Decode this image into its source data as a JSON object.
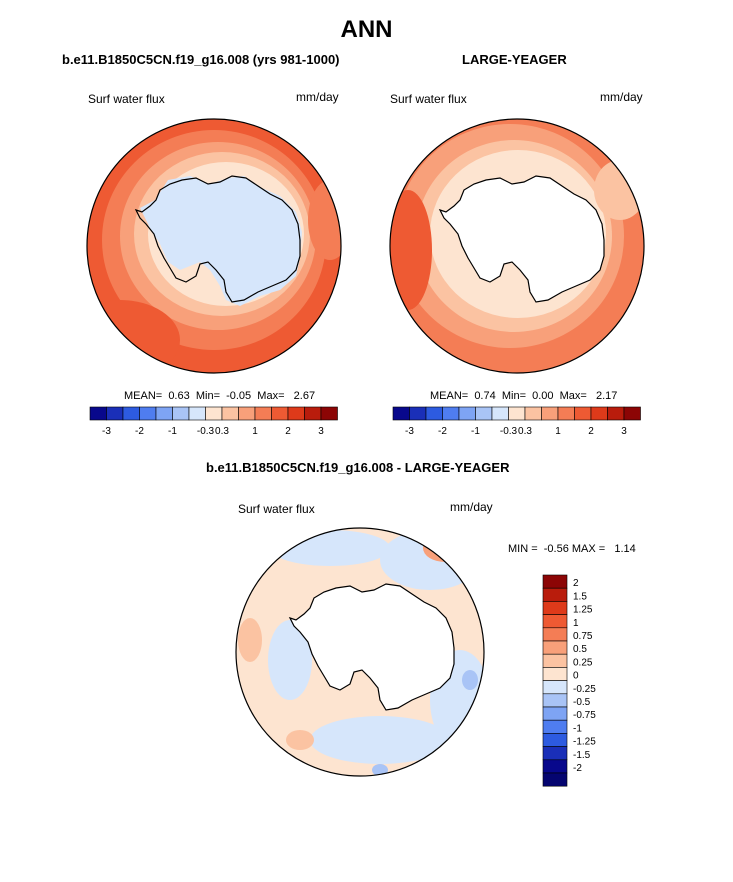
{
  "title": "ANN",
  "panel_left": {
    "case": "b.e11.B1850C5CN.f19_g16.008 (yrs 981-1000)",
    "variable": "Surf water flux",
    "units": "mm/day",
    "stats": "MEAN=  0.63  Min=  -0.05  Max=   2.67"
  },
  "panel_right": {
    "case": "LARGE-YEAGER",
    "variable": "Surf water flux",
    "units": "mm/day",
    "stats": "MEAN=  0.74  Min=  0.00  Max=   2.17"
  },
  "panel_diff": {
    "case": "b.e11.B1850C5CN.f19_g16.008 - LARGE-YEAGER",
    "variable": "Surf water flux",
    "units": "mm/day",
    "stats": "MIN =  -0.56 MAX =   1.14"
  },
  "colorbar_top": {
    "labels": [
      "-3",
      "-2",
      "-1",
      "-0.3",
      "0.3",
      "1",
      "2",
      "3"
    ],
    "colors": [
      "#08088c",
      "#1a2fb8",
      "#2d5be0",
      "#4f7df0",
      "#7ea4f4",
      "#a9c4f6",
      "#d6e6fb",
      "#fde4d0",
      "#fbc3a2",
      "#f8a07a",
      "#f47d55",
      "#ee5a33",
      "#de3a1a",
      "#b91c0c",
      "#8c0505"
    ]
  },
  "colorbar_diff": {
    "labels": [
      "2",
      "1.5",
      "1.25",
      "1",
      "0.75",
      "0.5",
      "0.25",
      "0",
      "-0.25",
      "-0.5",
      "-0.75",
      "-1",
      "-1.25",
      "-1.5",
      "-2"
    ],
    "colors": [
      "#8c0505",
      "#b91c0c",
      "#de3a1a",
      "#ee5a33",
      "#f47d55",
      "#f8a07a",
      "#fbc3a2",
      "#fde4d0",
      "#d6e6fb",
      "#a9c4f6",
      "#7ea4f4",
      "#4f7df0",
      "#2d5be0",
      "#1a2fb8",
      "#08088c",
      "#050570"
    ]
  },
  "chart_data": [
    {
      "type": "heatmap",
      "title": "b.e11.B1850C5CN.f19_g16.008 (yrs 981-1000)",
      "subtitle": "Surf water flux",
      "units": "mm/day",
      "mean": 0.63,
      "min": -0.05,
      "max": 2.67,
      "levels": [
        -3,
        -2,
        -1,
        -0.3,
        0.3,
        1,
        2,
        3
      ]
    },
    {
      "type": "heatmap",
      "title": "LARGE-YEAGER",
      "subtitle": "Surf water flux",
      "units": "mm/day",
      "mean": 0.74,
      "min": 0.0,
      "max": 2.17,
      "levels": [
        -3,
        -2,
        -1,
        -0.3,
        0.3,
        1,
        2,
        3
      ]
    },
    {
      "type": "heatmap",
      "title": "b.e11.B1850C5CN.f19_g16.008 - LARGE-YEAGER",
      "subtitle": "Surf water flux",
      "units": "mm/day",
      "min": -0.56,
      "max": 1.14,
      "levels": [
        -2,
        -1.5,
        -1.25,
        -1,
        -0.75,
        -0.5,
        -0.25,
        0,
        0.25,
        0.5,
        0.75,
        1,
        1.25,
        1.5,
        2
      ]
    }
  ]
}
